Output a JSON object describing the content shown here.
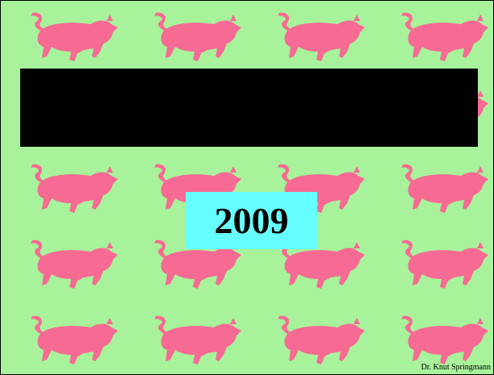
{
  "title_box": {
    "text": "2009"
  },
  "footer": {
    "author": "Dr. Knut Springmann"
  }
}
